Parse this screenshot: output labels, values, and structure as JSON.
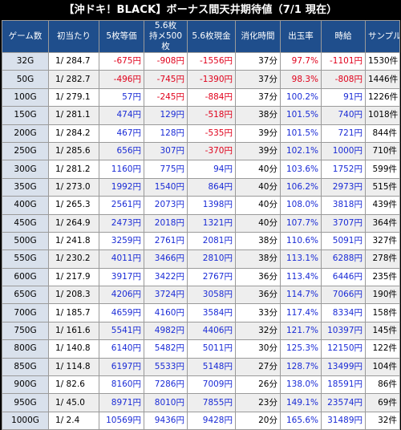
{
  "title": "【沖ドキ！BLACK】ボーナス間天井期待値（7/1 現在）",
  "headers": [
    "ゲーム数",
    "初当たり",
    "5枚等価",
    "5.6枚\n持メ500枚",
    "5.6枚現金",
    "消化時間",
    "出玉率",
    "時給",
    "サンプル数"
  ],
  "colors": {
    "negative": "#e0001b",
    "positive": "#1a2bd6",
    "header_bg": "#1f4e8c"
  },
  "rows": [
    [
      "32G",
      "1/ 284.7",
      "-675円",
      "-908円",
      "-1556円",
      "37分",
      "97.7%",
      "-1101円",
      "1530件"
    ],
    [
      "50G",
      "1/ 282.7",
      "-496円",
      "-745円",
      "-1390円",
      "37分",
      "98.3%",
      "-808円",
      "1446件"
    ],
    [
      "100G",
      "1/ 279.1",
      "57円",
      "-245円",
      "-884円",
      "37分",
      "100.2%",
      "91円",
      "1226件"
    ],
    [
      "150G",
      "1/ 281.1",
      "474円",
      "129円",
      "-518円",
      "38分",
      "101.5%",
      "740円",
      "1018件"
    ],
    [
      "200G",
      "1/ 284.2",
      "467円",
      "128円",
      "-535円",
      "39分",
      "101.5%",
      "721円",
      "844件"
    ],
    [
      "250G",
      "1/ 285.6",
      "656円",
      "307円",
      "-370円",
      "39分",
      "102.1%",
      "1000円",
      "710件"
    ],
    [
      "300G",
      "1/ 281.2",
      "1160円",
      "775円",
      "94円",
      "40分",
      "103.6%",
      "1752円",
      "599件"
    ],
    [
      "350G",
      "1/ 273.0",
      "1992円",
      "1540円",
      "864円",
      "40分",
      "106.2%",
      "2973円",
      "515件"
    ],
    [
      "400G",
      "1/ 265.3",
      "2561円",
      "2073円",
      "1398円",
      "40分",
      "108.0%",
      "3818円",
      "439件"
    ],
    [
      "450G",
      "1/ 264.9",
      "2473円",
      "2018円",
      "1321円",
      "40分",
      "107.7%",
      "3707円",
      "364件"
    ],
    [
      "500G",
      "1/ 241.8",
      "3259円",
      "2761円",
      "2081円",
      "38分",
      "110.6%",
      "5091円",
      "327件"
    ],
    [
      "550G",
      "1/ 230.2",
      "4011円",
      "3466円",
      "2810円",
      "38分",
      "113.1%",
      "6288円",
      "278件"
    ],
    [
      "600G",
      "1/ 217.9",
      "3917円",
      "3422円",
      "2767円",
      "36分",
      "113.4%",
      "6446円",
      "235件"
    ],
    [
      "650G",
      "1/ 208.3",
      "4206円",
      "3724円",
      "3058円",
      "36分",
      "114.7%",
      "7066円",
      "190件"
    ],
    [
      "700G",
      "1/ 185.7",
      "4659円",
      "4160円",
      "3584円",
      "33分",
      "117.4%",
      "8334円",
      "158件"
    ],
    [
      "750G",
      "1/ 161.6",
      "5541円",
      "4982円",
      "4406円",
      "32分",
      "121.7%",
      "10397円",
      "145件"
    ],
    [
      "800G",
      "1/ 140.8",
      "6140円",
      "5482円",
      "5011円",
      "30分",
      "125.3%",
      "12150円",
      "122件"
    ],
    [
      "850G",
      "1/ 114.8",
      "6197円",
      "5533円",
      "5148円",
      "27分",
      "128.7%",
      "13499円",
      "104件"
    ],
    [
      "900G",
      "1/ 82.6",
      "8160円",
      "7286円",
      "7009円",
      "26分",
      "138.0%",
      "18591円",
      "86件"
    ],
    [
      "950G",
      "1/ 45.0",
      "8971円",
      "8010円",
      "7855円",
      "23分",
      "149.1%",
      "23574円",
      "69件"
    ],
    [
      "1000G",
      "1/ 2.4",
      "10569円",
      "9436円",
      "9428円",
      "20分",
      "165.6%",
      "31489円",
      "32件"
    ]
  ]
}
